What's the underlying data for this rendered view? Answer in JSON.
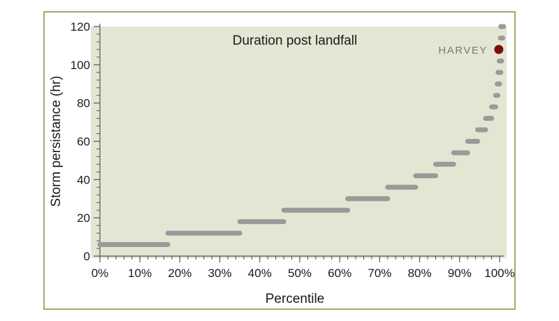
{
  "chart_data": {
    "type": "scatter",
    "title": "Duration post landfall",
    "xlabel": "Percentile",
    "ylabel": "Storm  persistance (hr)",
    "xlim": [
      0,
      100
    ],
    "ylim": [
      0,
      120
    ],
    "xticks": [
      0,
      10,
      20,
      30,
      40,
      50,
      60,
      70,
      80,
      90,
      100
    ],
    "xtick_labels": [
      "0%",
      "10%",
      "20%",
      "30%",
      "40%",
      "50%",
      "60%",
      "70%",
      "80%",
      "90%",
      "100%"
    ],
    "yticks": [
      0,
      20,
      40,
      60,
      80,
      100,
      120
    ],
    "ytick_labels": [
      "0",
      "20",
      "40",
      "60",
      "80",
      "100",
      "120"
    ],
    "grid": false,
    "series": [
      {
        "segments": [
          {
            "x_start": 0,
            "x_end": 17,
            "y": 6
          },
          {
            "x_start": 17,
            "x_end": 35,
            "y": 12
          },
          {
            "x_start": 35,
            "x_end": 46,
            "y": 18
          },
          {
            "x_start": 46,
            "x_end": 62,
            "y": 24
          },
          {
            "x_start": 62,
            "x_end": 72,
            "y": 30
          },
          {
            "x_start": 72,
            "x_end": 79,
            "y": 36
          },
          {
            "x_start": 79,
            "x_end": 84,
            "y": 42
          },
          {
            "x_start": 84,
            "x_end": 88.5,
            "y": 48
          },
          {
            "x_start": 88.5,
            "x_end": 92,
            "y": 54
          },
          {
            "x_start": 92,
            "x_end": 94.5,
            "y": 60
          },
          {
            "x_start": 94.5,
            "x_end": 96.5,
            "y": 66
          },
          {
            "x_start": 96.5,
            "x_end": 98,
            "y": 72
          },
          {
            "x_start": 98,
            "x_end": 99,
            "y": 78
          },
          {
            "x_start": 99,
            "x_end": 99.6,
            "y": 84
          },
          {
            "x_start": 99.4,
            "x_end": 100,
            "y": 90
          },
          {
            "x_start": 99.6,
            "x_end": 100.3,
            "y": 96
          },
          {
            "x_start": 99.9,
            "x_end": 100.5,
            "y": 102
          },
          {
            "x_start": 100.2,
            "x_end": 100.8,
            "y": 114
          },
          {
            "x_start": 100.3,
            "x_end": 101,
            "y": 120
          }
        ]
      }
    ],
    "highlight": {
      "label": "HARVEY",
      "x": 99.8,
      "y": 108
    },
    "colors": {
      "plot_background": "#e3e6d3",
      "frame_border": "#93b267",
      "segment": "#9a9a9a",
      "highlight_point": "#7a0d0f",
      "annotation_text": "#7a7a7a",
      "axis": "#555555"
    }
  }
}
